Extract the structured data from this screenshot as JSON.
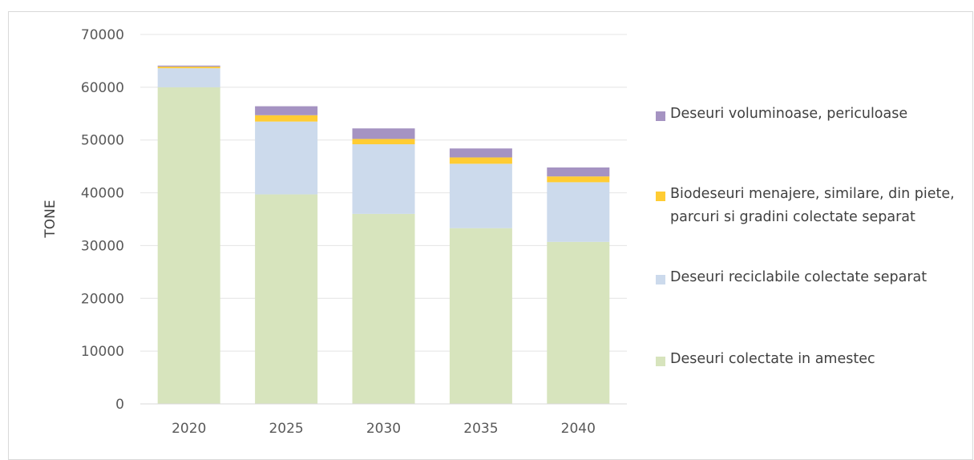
{
  "chart_data": {
    "type": "bar",
    "stacked": true,
    "title": "",
    "xlabel": "",
    "ylabel": "TONE",
    "ylim": [
      0,
      70000
    ],
    "yticks": [
      0,
      10000,
      20000,
      30000,
      40000,
      50000,
      60000,
      70000
    ],
    "grid": true,
    "legend_position": "right",
    "categories": [
      "2020",
      "2025",
      "2030",
      "2035",
      "2040"
    ],
    "series": [
      {
        "name": "Deseuri colectate in amestec",
        "color": "#d7e4bd",
        "values": [
          60000,
          39700,
          36000,
          33300,
          30700
        ]
      },
      {
        "name": "Deseuri reciclabile colectate separat",
        "color": "#ccdaec",
        "values": [
          3600,
          13800,
          13200,
          12200,
          11300
        ]
      },
      {
        "name": "Biodeseuri menajere, similare, din piete, parcuri si gradini colectate separat",
        "color": "#ffcc33",
        "values": [
          300,
          1200,
          1000,
          1200,
          1100
        ]
      },
      {
        "name": "Deseuri voluminoase, periculoase",
        "color": "#a593c2",
        "values": [
          200,
          1700,
          2000,
          1700,
          1700
        ]
      }
    ]
  }
}
